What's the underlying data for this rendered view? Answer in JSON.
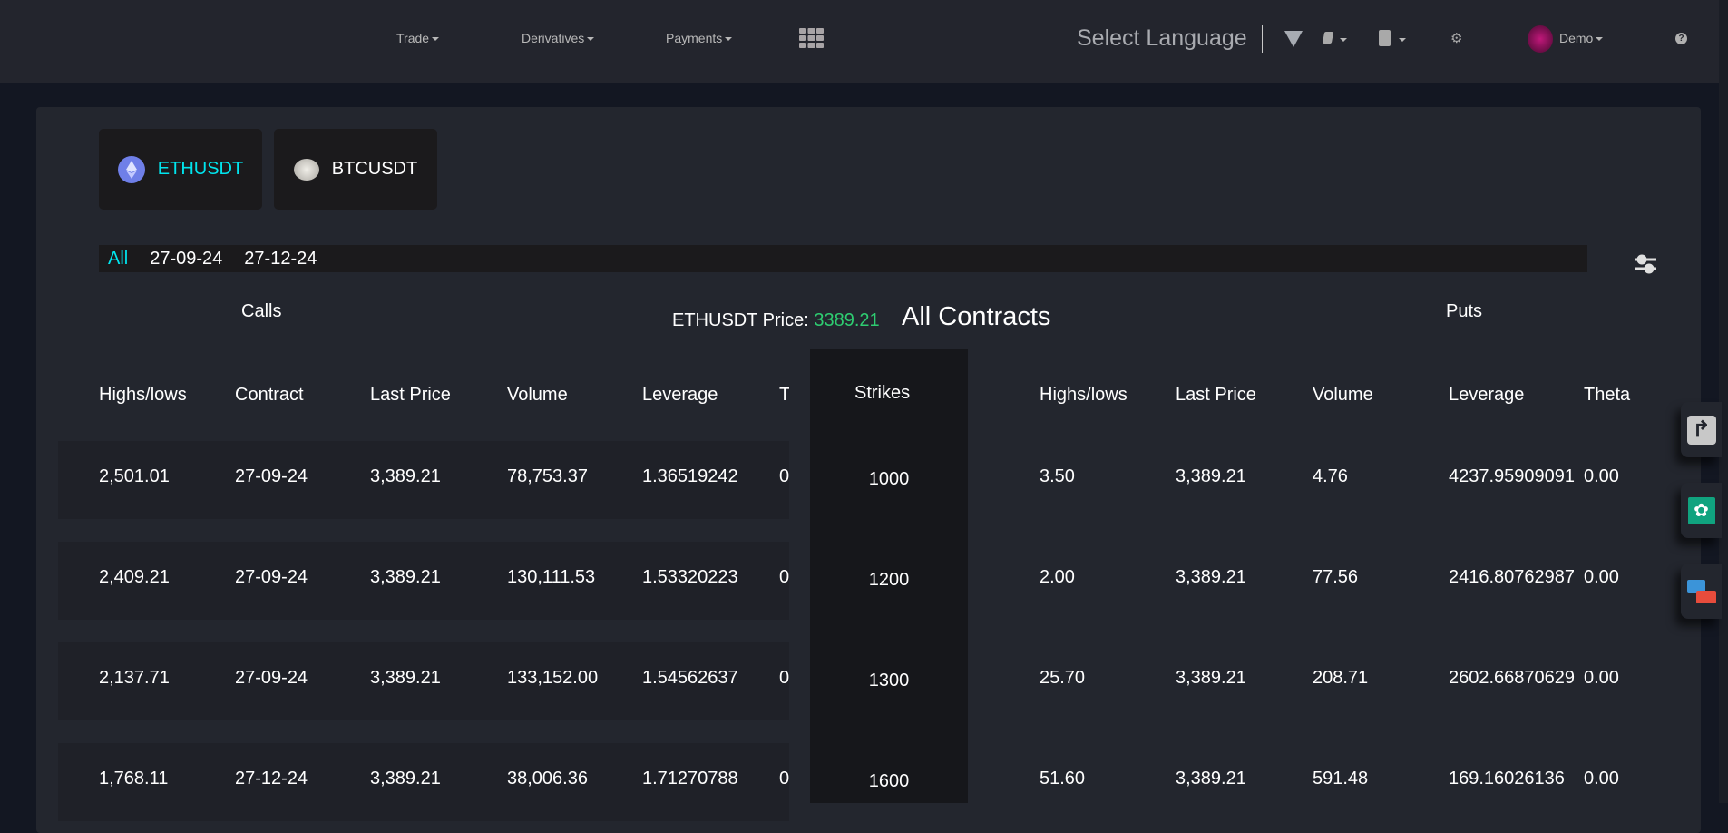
{
  "header": {
    "nav": [
      {
        "label": "Trade"
      },
      {
        "label": "Derivatives"
      },
      {
        "label": "Payments"
      }
    ],
    "language": "Select Language",
    "user": "Demo"
  },
  "symbols": [
    {
      "label": "ETHUSDT",
      "active": true
    },
    {
      "label": "BTCUSDT",
      "active": false
    }
  ],
  "dates": [
    "All",
    "27-09-24",
    "27-12-24"
  ],
  "summary": {
    "calls": "Calls",
    "puts": "Puts",
    "price_label": "ETHUSDT Price:",
    "price": "3389.21",
    "title": "All Contracts"
  },
  "calls_headers": [
    "Highs/lows",
    "Contract",
    "Last Price",
    "Volume",
    "Leverage",
    "T"
  ],
  "strikes_header": "Strikes",
  "puts_headers": [
    "Highs/lows",
    "Last Price",
    "Volume",
    "Leverage",
    "Theta"
  ],
  "rows": [
    {
      "calls": [
        "2,501.01",
        "27-09-24",
        "3,389.21",
        "78,753.37",
        "1.36519242",
        "0"
      ],
      "strike": "1000",
      "puts": [
        "3.50",
        "3,389.21",
        "4.76",
        "4237.95909091",
        "0.00"
      ]
    },
    {
      "calls": [
        "2,409.21",
        "27-09-24",
        "3,389.21",
        "130,111.53",
        "1.53320223",
        "0"
      ],
      "strike": "1200",
      "puts": [
        "2.00",
        "3,389.21",
        "77.56",
        "2416.80762987",
        "0.00"
      ]
    },
    {
      "calls": [
        "2,137.71",
        "27-09-24",
        "3,389.21",
        "133,152.00",
        "1.54562637",
        "0"
      ],
      "strike": "1300",
      "puts": [
        "25.70",
        "3,389.21",
        "208.71",
        "2602.66870629",
        "0.00"
      ]
    },
    {
      "calls": [
        "1,768.11",
        "27-12-24",
        "3,389.21",
        "38,006.36",
        "1.71270788",
        "0"
      ],
      "strike": "1600",
      "puts": [
        "51.60",
        "3,389.21",
        "591.48",
        "169.16026136",
        "0.00"
      ]
    }
  ],
  "colors": {
    "accent": "#00e5ee",
    "price": "#2ecc71",
    "bg": "#131722",
    "panel": "#23262e"
  }
}
